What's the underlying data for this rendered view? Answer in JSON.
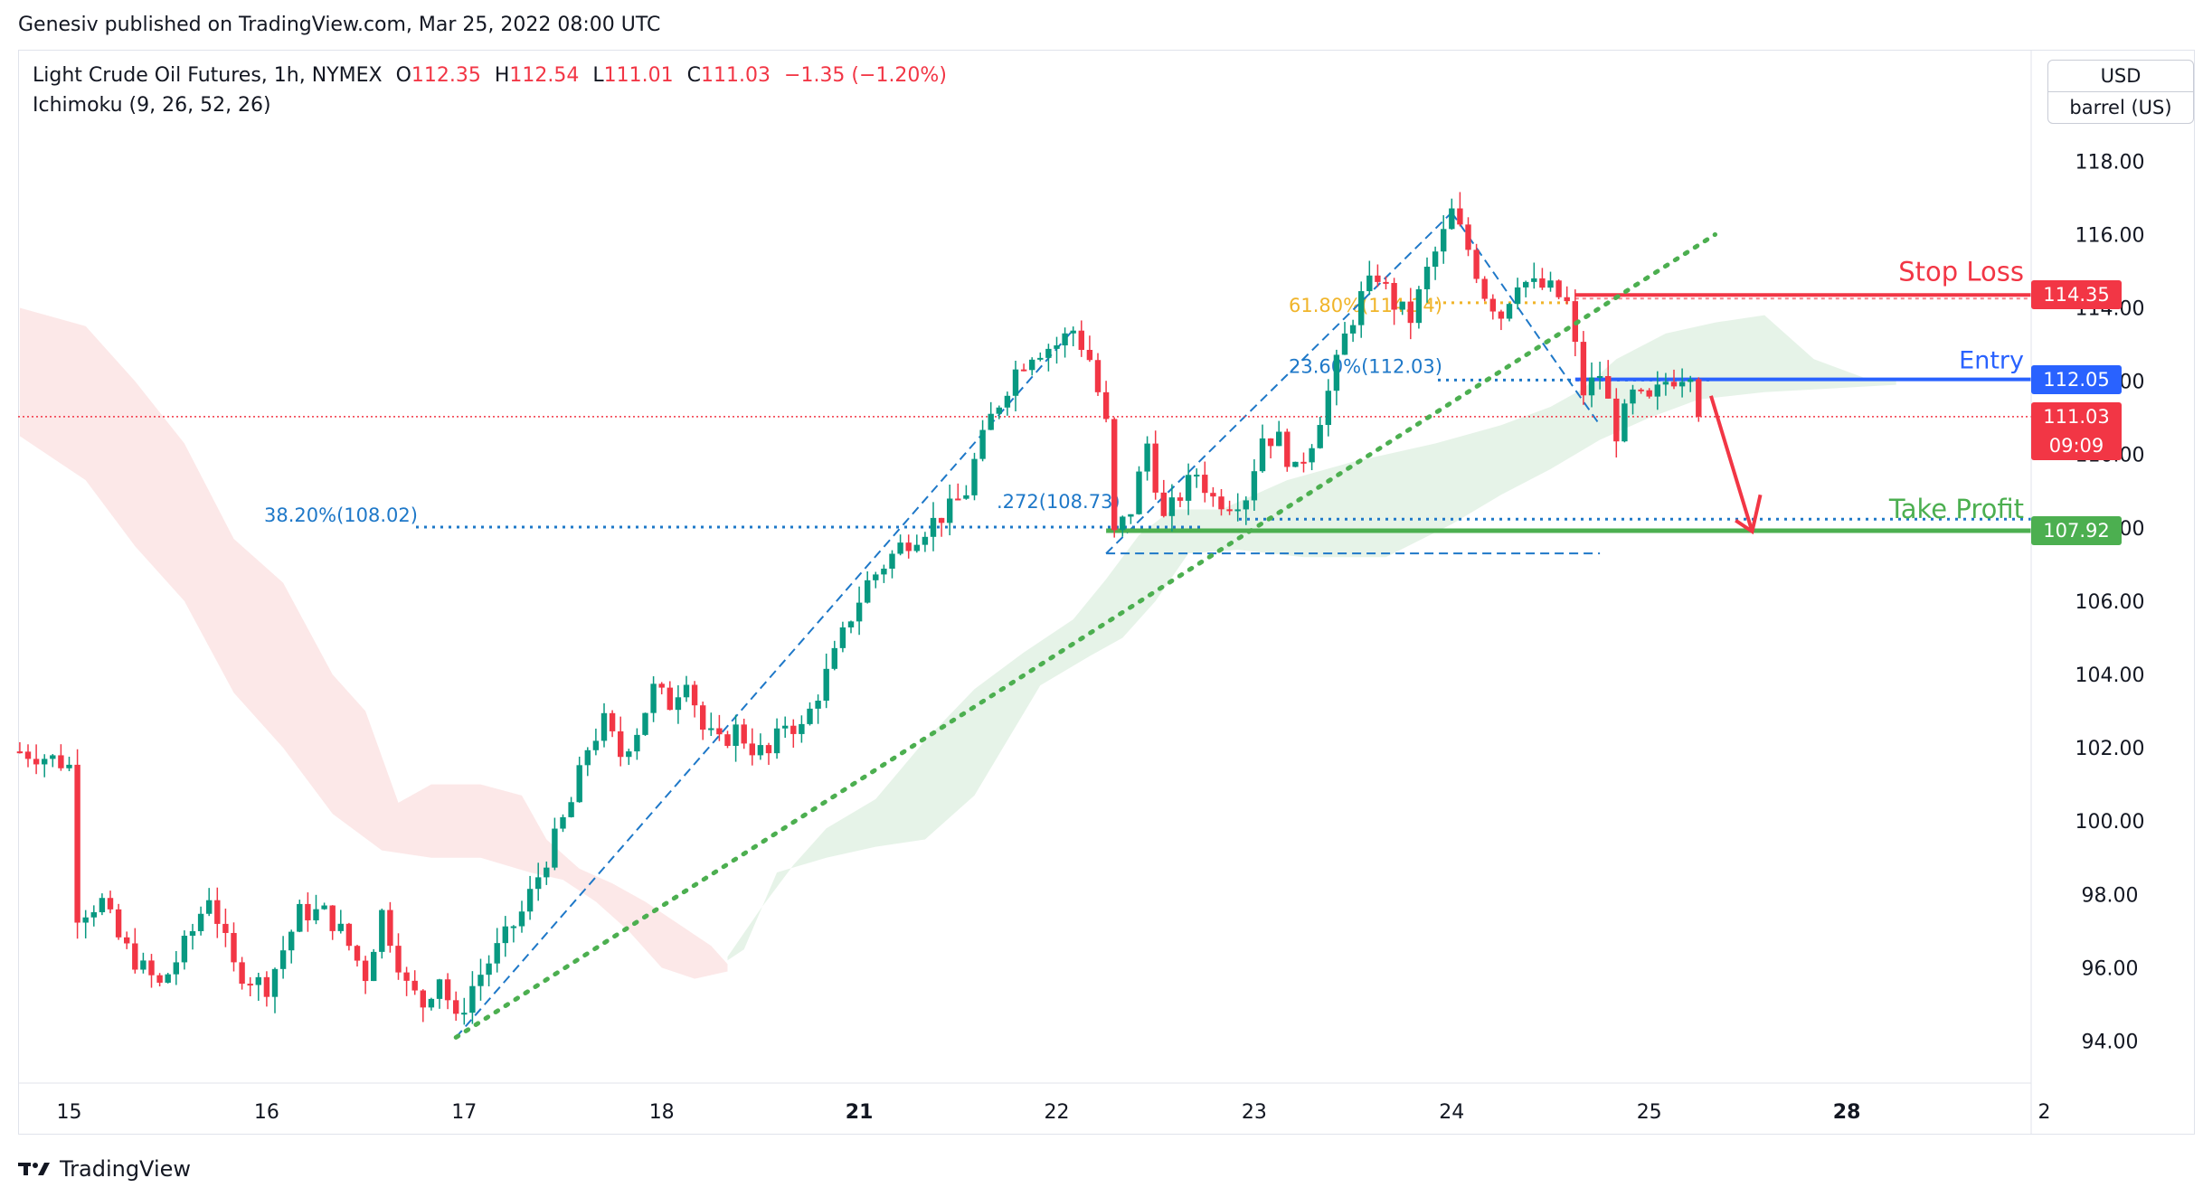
{
  "header": {
    "publisher_text": "Genesiv published on TradingView.com, Mar 25, 2022 08:00 UTC"
  },
  "legend": {
    "symbol": "Light Crude Oil Futures, 1h, NYMEX",
    "o_label": "O",
    "o_value": "112.35",
    "h_label": "H",
    "h_value": "112.54",
    "l_label": "L",
    "l_value": "111.01",
    "c_label": "C",
    "c_value": "111.03",
    "change": "−1.35 (−1.20%)",
    "indicator": "Ichimoku (9, 26, 52, 26)"
  },
  "price_axis": {
    "currency": "USD",
    "unit": "barrel (US)"
  },
  "footer": {
    "brand": "TradingView"
  },
  "colors": {
    "up": "#089981",
    "down": "#f23645",
    "stop": "#f23645",
    "entry": "#2962ff",
    "tp": "#4caf50",
    "fib": "#1e78c8",
    "fib_gold": "#f0b429"
  },
  "chart_data": {
    "type": "candlestick",
    "instrument": "Light Crude Oil Futures",
    "interval": "1h",
    "exchange": "NYMEX",
    "ylim": [
      93.2,
      120.0
    ],
    "y_ticks": [
      94,
      96,
      98,
      100,
      102,
      104,
      106,
      108,
      110,
      112,
      114,
      116,
      118
    ],
    "y_tick_labels": [
      "94.00",
      "96.00",
      "98.00",
      "100.00",
      "102.00",
      "104.00",
      "106.00",
      "108.00",
      "110.00",
      "112.00",
      "114.00",
      "116.00",
      "118.00"
    ],
    "x_ticks": [
      {
        "label": "15",
        "t": 0,
        "bold": false
      },
      {
        "label": "16",
        "t": 24,
        "bold": false
      },
      {
        "label": "17",
        "t": 48,
        "bold": false
      },
      {
        "label": "18",
        "t": 72,
        "bold": false
      },
      {
        "label": "21",
        "t": 96,
        "bold": true
      },
      {
        "label": "22",
        "t": 120,
        "bold": false
      },
      {
        "label": "23",
        "t": 144,
        "bold": false
      },
      {
        "label": "24",
        "t": 168,
        "bold": false
      },
      {
        "label": "25",
        "t": 192,
        "bold": false
      },
      {
        "label": "28",
        "t": 216,
        "bold": true
      },
      {
        "label": "2",
        "t": 240,
        "bold": false
      }
    ],
    "xlim": [
      -6,
      240
    ],
    "price_path": [
      [
        -6,
        101.9
      ],
      [
        -2,
        101.7
      ],
      [
        0,
        101.5
      ],
      [
        1,
        97.5
      ],
      [
        4,
        97.8
      ],
      [
        6,
        96.8
      ],
      [
        8,
        96.2
      ],
      [
        11,
        95.5
      ],
      [
        13,
        96.2
      ],
      [
        15,
        97.0
      ],
      [
        17,
        98.0
      ],
      [
        20,
        96.0
      ],
      [
        22,
        95.7
      ],
      [
        24,
        95.5
      ],
      [
        26,
        96.5
      ],
      [
        28,
        97.5
      ],
      [
        31,
        97.5
      ],
      [
        33,
        97.0
      ],
      [
        36,
        95.8
      ],
      [
        38,
        97.5
      ],
      [
        41,
        95.5
      ],
      [
        43,
        95.0
      ],
      [
        45,
        95.8
      ],
      [
        47,
        94.5
      ],
      [
        49,
        95.5
      ],
      [
        52,
        96.5
      ],
      [
        55,
        97.5
      ],
      [
        57,
        98.5
      ],
      [
        59,
        99.5
      ],
      [
        61,
        100.5
      ],
      [
        63,
        102.0
      ],
      [
        65,
        102.7
      ],
      [
        67,
        101.8
      ],
      [
        69,
        102.5
      ],
      [
        71,
        103.6
      ],
      [
        73,
        103.2
      ],
      [
        75,
        104.0
      ],
      [
        77,
        102.5
      ],
      [
        79,
        102.1
      ],
      [
        81,
        102.5
      ],
      [
        83,
        102.0
      ],
      [
        85,
        101.8
      ],
      [
        87,
        102.7
      ],
      [
        89,
        102.5
      ],
      [
        91,
        103.5
      ],
      [
        93,
        104.5
      ],
      [
        95,
        105.6
      ],
      [
        97,
        106.5
      ],
      [
        99,
        107.0
      ],
      [
        101,
        107.5
      ],
      [
        104,
        108.0
      ],
      [
        107,
        108.5
      ],
      [
        109,
        109.0
      ],
      [
        110,
        109.8
      ],
      [
        112,
        111.0
      ],
      [
        115,
        112.3
      ],
      [
        117,
        112.8
      ],
      [
        120,
        113.0
      ],
      [
        122,
        113.4
      ],
      [
        124,
        112.6
      ],
      [
        126,
        110.8
      ],
      [
        127,
        107.8
      ],
      [
        129,
        108.5
      ],
      [
        131,
        110.3
      ],
      [
        133,
        108.2
      ],
      [
        135,
        108.9
      ],
      [
        137,
        109.5
      ],
      [
        139,
        108.8
      ],
      [
        141,
        108.7
      ],
      [
        143,
        108.9
      ],
      [
        145,
        110.5
      ],
      [
        147,
        110.4
      ],
      [
        149,
        109.5
      ],
      [
        151,
        110.4
      ],
      [
        153,
        111.7
      ],
      [
        155,
        113.2
      ],
      [
        157,
        114.3
      ],
      [
        159,
        114.9
      ],
      [
        161,
        114.1
      ],
      [
        163,
        113.7
      ],
      [
        165,
        115.0
      ],
      [
        167,
        116.0
      ],
      [
        168,
        116.6
      ],
      [
        170,
        115.6
      ],
      [
        172,
        114.4
      ],
      [
        174,
        113.8
      ],
      [
        176,
        114.8
      ],
      [
        178,
        114.6
      ],
      [
        180,
        114.5
      ],
      [
        182,
        114.1
      ],
      [
        184,
        111.7
      ],
      [
        186,
        112.2
      ],
      [
        188,
        110.6
      ],
      [
        190,
        111.6
      ],
      [
        192,
        111.4
      ],
      [
        194,
        112.0
      ],
      [
        196,
        112.2
      ],
      [
        197,
        112.35
      ],
      [
        198,
        111.03
      ]
    ],
    "candles_note": "candles synthesized along the price_path",
    "last_price": "111.03",
    "countdown": "09:09",
    "fibonacci": [
      {
        "label": "38.20%(108.02)",
        "level": 108.02
      },
      {
        "label": "23.60%(112.03)",
        "level": 112.03
      },
      {
        "label": "61.80%(114.14)",
        "level": 114.14
      },
      {
        "label": ".272(108.73)",
        "level": 108.73
      }
    ],
    "annotations": {
      "stop_loss": {
        "label": "Stop Loss",
        "level": 114.35,
        "tag": "114.35"
      },
      "entry": {
        "label": "Entry",
        "level": 112.05,
        "tag": "112.05"
      },
      "take_profit": {
        "label": "Take Profit",
        "level": 107.92,
        "tag": "107.92"
      }
    }
  }
}
